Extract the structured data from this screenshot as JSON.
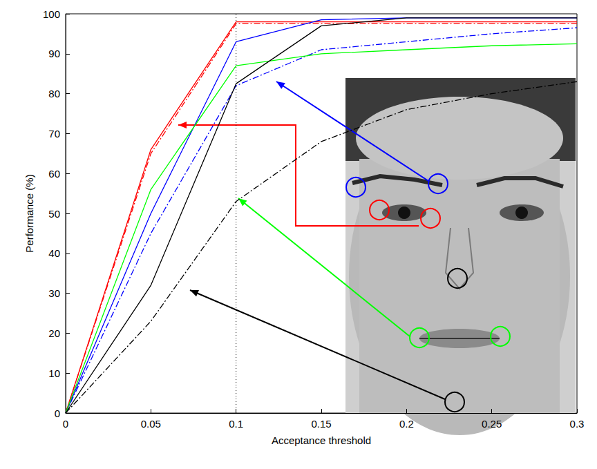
{
  "chart_data": {
    "type": "line",
    "x_label": "Acceptance threshold",
    "y_label": "Performance (%)",
    "x": [
      0,
      0.05,
      0.1,
      0.15,
      0.2,
      0.25,
      0.3
    ],
    "series": [
      {
        "color": "#ff0000",
        "line_style": "solid",
        "values": [
          0,
          66,
          98,
          98,
          98,
          98,
          98
        ]
      },
      {
        "color": "#ff0000",
        "line_style": "dash-dot",
        "values": [
          0,
          65,
          97.5,
          97.5,
          97.5,
          97.5,
          97.5
        ]
      },
      {
        "color": "#0000ff",
        "line_style": "solid",
        "values": [
          0,
          50,
          93,
          98.5,
          99,
          99,
          99
        ]
      },
      {
        "color": "#0000ff",
        "line_style": "dash-dot",
        "values": [
          0,
          45,
          82,
          91,
          93,
          95,
          96.5
        ]
      },
      {
        "color": "#00ff00",
        "line_style": "solid",
        "values": [
          0,
          56,
          87,
          90,
          91,
          92,
          92.5
        ]
      },
      {
        "color": "#000000",
        "line_style": "solid",
        "values": [
          0,
          32,
          82.5,
          97,
          99,
          99,
          99
        ]
      },
      {
        "color": "#000000",
        "line_style": "dash-dot",
        "values": [
          0,
          23,
          53,
          68,
          76,
          80,
          83
        ]
      }
    ],
    "xlim": [
      0,
      0.3
    ],
    "xticks": [
      0,
      0.05,
      0.1,
      0.15,
      0.2,
      0.25,
      0.3
    ],
    "ylim": [
      0,
      100
    ],
    "yticks": [
      0,
      10,
      20,
      30,
      40,
      50,
      60,
      70,
      80,
      90,
      100
    ],
    "grid": false,
    "reference_lines": [
      {
        "x": 0.1,
        "line_style": "dotted"
      }
    ]
  }
}
